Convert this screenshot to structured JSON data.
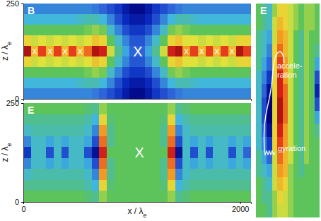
{
  "chart_data": [
    {
      "type": "heatmap",
      "title": "B",
      "ylabel": "z / λe",
      "xlim": [
        0,
        2100
      ],
      "ylim": [
        0,
        250
      ],
      "yticks": [
        0,
        250
      ],
      "tick_labels": "y",
      "color_range": [
        0,
        1
      ],
      "cells": {
        "x": [
          35,
          105,
          175,
          245,
          315,
          385,
          455,
          525,
          595,
          665,
          735,
          805,
          875,
          945,
          1015,
          1085,
          1155,
          1225,
          1295,
          1365,
          1435,
          1505,
          1575,
          1645,
          1715,
          1785,
          1855,
          1925,
          1995,
          2065
        ],
        "z": [
          236.1,
          208.3,
          180.6,
          152.8,
          125,
          97.2,
          69.4,
          41.7,
          13.9
        ],
        "values": [
          [
            0.3,
            0.3,
            0.3,
            0.3,
            0.3,
            0.3,
            0.3,
            0.3,
            0.3,
            0.28,
            0.25,
            0.2,
            0.15,
            0.08,
            0.03,
            0.03,
            0.08,
            0.15,
            0.2,
            0.25,
            0.28,
            0.3,
            0.3,
            0.3,
            0.3,
            0.3,
            0.3,
            0.3,
            0.3,
            0.3
          ],
          [
            0.38,
            0.38,
            0.38,
            0.38,
            0.38,
            0.38,
            0.38,
            0.4,
            0.42,
            0.42,
            0.38,
            0.3,
            0.2,
            0.12,
            0.08,
            0.08,
            0.12,
            0.2,
            0.3,
            0.38,
            0.42,
            0.42,
            0.4,
            0.38,
            0.38,
            0.38,
            0.38,
            0.38,
            0.38,
            0.38
          ],
          [
            0.5,
            0.5,
            0.5,
            0.5,
            0.5,
            0.5,
            0.5,
            0.5,
            0.52,
            0.55,
            0.52,
            0.4,
            0.3,
            0.2,
            0.15,
            0.15,
            0.2,
            0.3,
            0.4,
            0.52,
            0.55,
            0.52,
            0.5,
            0.5,
            0.5,
            0.5,
            0.5,
            0.5,
            0.5,
            0.5
          ],
          [
            0.65,
            0.6,
            0.62,
            0.6,
            0.62,
            0.6,
            0.62,
            0.6,
            0.62,
            0.68,
            0.65,
            0.5,
            0.4,
            0.3,
            0.22,
            0.22,
            0.3,
            0.4,
            0.5,
            0.65,
            0.68,
            0.62,
            0.62,
            0.6,
            0.62,
            0.6,
            0.62,
            0.6,
            0.65,
            0.65
          ],
          [
            0.95,
            0.7,
            0.85,
            0.7,
            0.85,
            0.7,
            0.85,
            0.7,
            0.8,
            0.95,
            0.9,
            0.6,
            0.45,
            0.35,
            0.25,
            0.25,
            0.35,
            0.45,
            0.6,
            0.9,
            0.95,
            0.75,
            0.85,
            0.7,
            0.85,
            0.7,
            0.85,
            0.7,
            0.95,
            0.85
          ],
          [
            0.65,
            0.6,
            0.62,
            0.6,
            0.62,
            0.6,
            0.62,
            0.6,
            0.62,
            0.68,
            0.65,
            0.5,
            0.4,
            0.3,
            0.22,
            0.22,
            0.3,
            0.4,
            0.5,
            0.65,
            0.68,
            0.62,
            0.62,
            0.6,
            0.62,
            0.6,
            0.62,
            0.6,
            0.65,
            0.65
          ],
          [
            0.5,
            0.5,
            0.5,
            0.5,
            0.5,
            0.5,
            0.5,
            0.5,
            0.52,
            0.55,
            0.52,
            0.4,
            0.3,
            0.2,
            0.15,
            0.15,
            0.2,
            0.3,
            0.4,
            0.52,
            0.55,
            0.52,
            0.5,
            0.5,
            0.5,
            0.5,
            0.5,
            0.5,
            0.5,
            0.5
          ],
          [
            0.38,
            0.38,
            0.38,
            0.38,
            0.38,
            0.38,
            0.38,
            0.4,
            0.42,
            0.42,
            0.38,
            0.3,
            0.2,
            0.12,
            0.08,
            0.08,
            0.12,
            0.2,
            0.3,
            0.38,
            0.42,
            0.42,
            0.4,
            0.38,
            0.38,
            0.38,
            0.38,
            0.38,
            0.38,
            0.38
          ],
          [
            0.3,
            0.3,
            0.3,
            0.3,
            0.3,
            0.3,
            0.3,
            0.3,
            0.3,
            0.28,
            0.25,
            0.2,
            0.15,
            0.08,
            0.03,
            0.03,
            0.08,
            0.15,
            0.2,
            0.25,
            0.28,
            0.3,
            0.3,
            0.3,
            0.3,
            0.3,
            0.3,
            0.3,
            0.3,
            0.3
          ]
        ]
      },
      "annotations": [
        {
          "text": "X",
          "x": 1056,
          "z": 125,
          "marker": "large"
        },
        {
          "text": "X",
          "x": 105,
          "z": 125,
          "marker": "small"
        },
        {
          "text": "X",
          "x": 245,
          "z": 125,
          "marker": "small"
        },
        {
          "text": "X",
          "x": 385,
          "z": 125,
          "marker": "small"
        },
        {
          "text": "X",
          "x": 525,
          "z": 125,
          "marker": "small"
        },
        {
          "text": "X",
          "x": 1505,
          "z": 125,
          "marker": "small"
        },
        {
          "text": "X",
          "x": 1645,
          "z": 125,
          "marker": "small"
        },
        {
          "text": "X",
          "x": 1785,
          "z": 125,
          "marker": "small"
        },
        {
          "text": "X",
          "x": 1925,
          "z": 125,
          "marker": "small"
        }
      ]
    },
    {
      "type": "heatmap",
      "title": "E",
      "xlabel": "x / λe",
      "ylabel": "z / λe",
      "xlim": [
        0,
        2100
      ],
      "ylim": [
        0,
        250
      ],
      "xticks": [
        0,
        2000
      ],
      "yticks": [
        0,
        250
      ],
      "color_range": [
        -1,
        1
      ],
      "cells": {
        "x": [
          35,
          105,
          175,
          245,
          315,
          385,
          455,
          525,
          595,
          665,
          735,
          805,
          875,
          945,
          1015,
          1085,
          1155,
          1225,
          1295,
          1365,
          1435,
          1505,
          1575,
          1645,
          1715,
          1785,
          1855,
          1925,
          1995,
          2065
        ],
        "z": [
          236.1,
          208.3,
          180.6,
          152.8,
          125,
          97.2,
          69.4,
          41.7,
          13.9
        ],
        "values": [
          [
            0,
            0,
            0,
            0,
            0,
            0,
            0,
            0,
            -0.05,
            -0.1,
            0.1,
            0,
            0,
            0,
            0,
            0,
            0,
            0,
            0,
            0.1,
            -0.1,
            -0.05,
            0,
            0,
            0,
            0,
            0,
            0,
            0,
            0
          ],
          [
            -0.1,
            -0.1,
            -0.1,
            -0.1,
            -0.1,
            -0.1,
            -0.1,
            -0.1,
            -0.15,
            -0.25,
            0.3,
            -0.05,
            0,
            0,
            0,
            0,
            0,
            0,
            -0.05,
            0.3,
            -0.25,
            -0.15,
            -0.1,
            -0.1,
            -0.1,
            -0.1,
            -0.1,
            -0.1,
            -0.1,
            -0.1
          ],
          [
            -0.2,
            -0.15,
            -0.15,
            -0.15,
            -0.15,
            -0.15,
            -0.15,
            -0.15,
            -0.2,
            -0.4,
            0.5,
            -0.1,
            0,
            0,
            0,
            0,
            0,
            0,
            -0.1,
            0.5,
            -0.4,
            -0.2,
            -0.15,
            -0.15,
            -0.15,
            -0.15,
            -0.15,
            -0.15,
            -0.15,
            -0.15
          ],
          [
            -0.4,
            -0.2,
            -0.2,
            -0.3,
            -0.2,
            -0.3,
            -0.2,
            -0.2,
            -0.3,
            -0.6,
            0.6,
            -0.1,
            0,
            0,
            0,
            0,
            0,
            0,
            -0.1,
            0.6,
            -0.6,
            -0.2,
            -0.3,
            -0.2,
            -0.3,
            -0.2,
            -0.2,
            -0.3,
            -0.2,
            -0.3
          ],
          [
            -0.7,
            -0.2,
            -0.2,
            -0.6,
            -0.2,
            -0.6,
            -0.2,
            -0.2,
            -0.6,
            -0.9,
            0.8,
            0,
            0,
            0,
            0,
            0,
            0,
            0,
            0,
            0.8,
            -0.9,
            -0.2,
            -0.6,
            -0.2,
            -0.6,
            -0.2,
            -0.2,
            -0.6,
            -0.2,
            -0.5
          ],
          [
            -0.4,
            -0.2,
            -0.2,
            -0.3,
            -0.2,
            -0.3,
            -0.2,
            -0.2,
            -0.3,
            -0.6,
            0.6,
            -0.1,
            0,
            0,
            0,
            0,
            0,
            0,
            -0.1,
            0.6,
            -0.6,
            -0.2,
            -0.3,
            -0.2,
            -0.3,
            -0.2,
            -0.2,
            -0.3,
            -0.2,
            -0.3
          ],
          [
            -0.2,
            -0.15,
            -0.15,
            -0.15,
            -0.15,
            -0.15,
            -0.15,
            -0.15,
            -0.2,
            -0.4,
            0.5,
            -0.1,
            0,
            0,
            0,
            0,
            0,
            0,
            -0.1,
            0.5,
            -0.4,
            -0.2,
            -0.15,
            -0.15,
            -0.15,
            -0.15,
            -0.15,
            -0.15,
            -0.15,
            -0.15
          ],
          [
            -0.1,
            -0.1,
            -0.1,
            -0.1,
            -0.1,
            -0.1,
            -0.1,
            -0.1,
            -0.15,
            -0.25,
            0.3,
            -0.05,
            0,
            0,
            0,
            0,
            0,
            0,
            -0.05,
            0.3,
            -0.25,
            -0.15,
            -0.1,
            -0.1,
            -0.1,
            -0.1,
            -0.1,
            -0.1,
            -0.1,
            -0.1
          ],
          [
            0,
            0,
            0,
            0,
            0,
            0,
            0,
            0,
            -0.05,
            -0.1,
            0.1,
            0,
            0,
            0,
            0,
            0,
            0,
            0,
            0,
            0.1,
            -0.1,
            -0.05,
            0,
            0,
            0,
            0,
            0,
            0,
            0,
            0
          ]
        ]
      },
      "annotations": [
        {
          "text": "X",
          "x": 1070,
          "z": 125,
          "marker": "large"
        }
      ]
    },
    {
      "type": "heatmap",
      "title": "E",
      "tick_labels": false,
      "color_range": [
        -1,
        1
      ],
      "cells": {
        "values": [
          [
            0,
            -0.1,
            -0.2,
            0.1,
            0.3,
            0.3,
            0.2,
            0.1,
            0,
            0.1,
            0.1,
            0
          ],
          [
            0,
            -0.1,
            -0.2,
            0.2,
            0.4,
            0.3,
            0.2,
            0.1,
            0,
            0.1,
            0.1,
            0
          ],
          [
            -0.1,
            -0.2,
            -0.3,
            0.2,
            0.5,
            0.4,
            0.2,
            0,
            -0.1,
            0.1,
            0,
            0
          ],
          [
            -0.1,
            -0.2,
            -0.4,
            0.3,
            0.6,
            0.4,
            0.2,
            0,
            -0.1,
            0.1,
            0,
            -0.1
          ],
          [
            -0.1,
            -0.3,
            -0.5,
            0.3,
            0.7,
            0.5,
            0.2,
            0,
            -0.1,
            0.1,
            0,
            -0.3
          ],
          [
            -0.2,
            -0.4,
            -0.7,
            0.3,
            0.8,
            0.5,
            0.2,
            0,
            -0.1,
            0.1,
            0,
            -0.6
          ],
          [
            -0.2,
            -0.5,
            -0.9,
            0.3,
            0.8,
            0.6,
            0.2,
            0,
            -0.1,
            0.1,
            0,
            -0.8
          ],
          [
            -0.2,
            -0.6,
            -1,
            0.3,
            0.9,
            0.6,
            0.2,
            0,
            -0.1,
            0.1,
            0,
            -0.6
          ],
          [
            -0.2,
            -0.6,
            -1,
            0.3,
            0.9,
            0.6,
            0.2,
            0,
            -0.1,
            0.1,
            0,
            -0.3
          ],
          [
            -0.2,
            -0.5,
            -0.9,
            0.3,
            0.8,
            0.5,
            0.2,
            0,
            -0.1,
            0.1,
            0,
            -0.1
          ],
          [
            -0.2,
            -0.4,
            -0.7,
            0.3,
            0.7,
            0.5,
            0.2,
            0,
            -0.1,
            0.1,
            0,
            0
          ],
          [
            -0.1,
            -0.3,
            -0.5,
            0.2,
            0.6,
            0.4,
            0.2,
            0,
            -0.1,
            0.1,
            0,
            0
          ],
          [
            -0.1,
            -0.2,
            -0.3,
            0.2,
            0.5,
            0.4,
            0.1,
            0,
            -0.1,
            0,
            0,
            0
          ],
          [
            0,
            -0.1,
            -0.2,
            0.2,
            0.4,
            0.3,
            0.1,
            0,
            0,
            0,
            0,
            0
          ],
          [
            0,
            -0.1,
            -0.1,
            0.1,
            0.3,
            0.2,
            0.1,
            0,
            0,
            0,
            0,
            0
          ],
          [
            0,
            0,
            -0.1,
            0.1,
            0.2,
            0.2,
            0.1,
            0,
            0,
            0,
            0,
            0
          ]
        ]
      },
      "annotations": [
        {
          "text": [
            "accele-",
            "ration"
          ]
        },
        {
          "text": "gyration"
        }
      ]
    }
  ]
}
